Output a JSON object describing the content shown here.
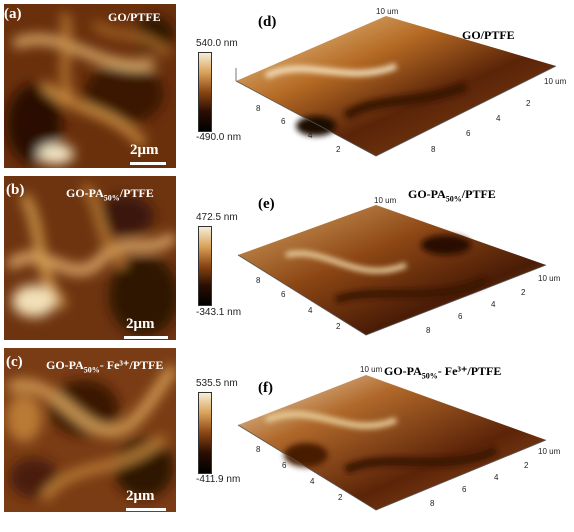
{
  "panels": [
    {
      "label": "(a)",
      "sample_main": "GO/PTFE",
      "sample_sub": "",
      "sample_tail": "",
      "scalebar": "2μm",
      "cbar_max": "540.0 nm",
      "cbar_min": "-490.0 nm"
    },
    {
      "label": "(b)",
      "sample_main": "GO-PA",
      "sample_sub": "50%",
      "sample_tail": "/PTFE",
      "scalebar": "2μm",
      "cbar_max": "472.5 nm",
      "cbar_min": "-343.1 nm"
    },
    {
      "label": "(c)",
      "sample_main": "GO-PA",
      "sample_sub": "50%",
      "sample_tail": "- Fe³⁺/PTFE",
      "scalebar": "2μm",
      "cbar_max": "535.5 nm",
      "cbar_min": "-411.9 nm"
    }
  ],
  "panels3d": [
    {
      "label": "(d)",
      "sample_main": "GO/PTFE",
      "sample_sub": "",
      "sample_tail": ""
    },
    {
      "label": "(e)",
      "sample_main": "GO-PA",
      "sample_sub": "50%",
      "sample_tail": "/PTFE"
    },
    {
      "label": "(f)",
      "sample_main": "GO-PA",
      "sample_sub": "50%",
      "sample_tail": "- Fe³⁺/PTFE"
    }
  ],
  "axis_ticks": [
    "2",
    "4",
    "6",
    "8",
    "10"
  ],
  "axis_unit": "um",
  "colors": {
    "dark": "#1a0a02",
    "mid": "#7a3b10",
    "orange": "#c9822e",
    "light": "#f2e6c9"
  }
}
